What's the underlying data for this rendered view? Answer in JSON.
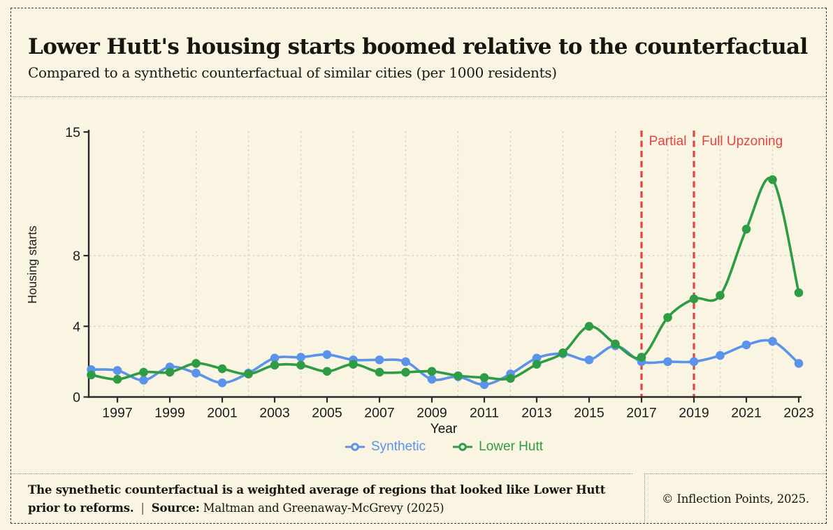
{
  "page": {
    "background": "#FAF4E2",
    "title": "Lower Hutt's housing starts boomed relative to the counterfactual",
    "subtitle": "Compared to a synthetic counterfactual of similar cities (per 1000 residents)"
  },
  "chart_data": {
    "type": "line",
    "x": [
      1996,
      1997,
      1998,
      1999,
      2000,
      2001,
      2002,
      2003,
      2004,
      2005,
      2006,
      2007,
      2008,
      2009,
      2010,
      2011,
      2012,
      2013,
      2014,
      2015,
      2016,
      2017,
      2018,
      2019,
      2020,
      2021,
      2022,
      2023
    ],
    "series": [
      {
        "name": "Synthetic",
        "color": "#5B93EB",
        "values": [
          1.55,
          1.5,
          0.95,
          1.7,
          1.35,
          0.8,
          1.35,
          2.2,
          2.25,
          2.4,
          2.1,
          2.1,
          2.0,
          1.0,
          1.15,
          0.7,
          1.3,
          2.2,
          2.45,
          2.1,
          2.9,
          2.0,
          2.0,
          2.0,
          2.35,
          2.95,
          3.15,
          1.9
        ]
      },
      {
        "name": "Lower Hutt",
        "color": "#2E9C44",
        "values": [
          1.25,
          1.0,
          1.4,
          1.4,
          1.9,
          1.6,
          1.3,
          1.8,
          1.8,
          1.45,
          1.85,
          1.4,
          1.4,
          1.45,
          1.2,
          1.1,
          1.05,
          1.85,
          2.5,
          4.0,
          3.0,
          2.25,
          4.5,
          5.55,
          5.75,
          9.5,
          12.3,
          5.9
        ]
      }
    ],
    "xlabel": "Year",
    "ylabel": "Housing starts",
    "ylim": [
      0,
      15
    ],
    "yticks": [
      0,
      4,
      8,
      15
    ],
    "xticks": [
      1997,
      1999,
      2001,
      2003,
      2005,
      2007,
      2009,
      2011,
      2013,
      2015,
      2017,
      2019,
      2021,
      2023
    ],
    "grid": {
      "y_values": [
        4,
        8
      ],
      "x_even_years": true,
      "color": "#D8D0BC"
    },
    "legend_position": "bottom",
    "annotations": {
      "color": "#E2453E",
      "vlines": [
        {
          "x": 2017,
          "label": "Partial"
        },
        {
          "x": 2019,
          "label": "Full Upzoning"
        }
      ]
    }
  },
  "footer": {
    "note": "The synethetic counterfactual is a weighted average of regions that looked like Lower Hutt prior to reforms.",
    "separator": "|",
    "source_label": "Source:",
    "source": "Maltman and Greenaway-McGrevy (2025)",
    "credit": "© Inflection Points, 2025."
  }
}
